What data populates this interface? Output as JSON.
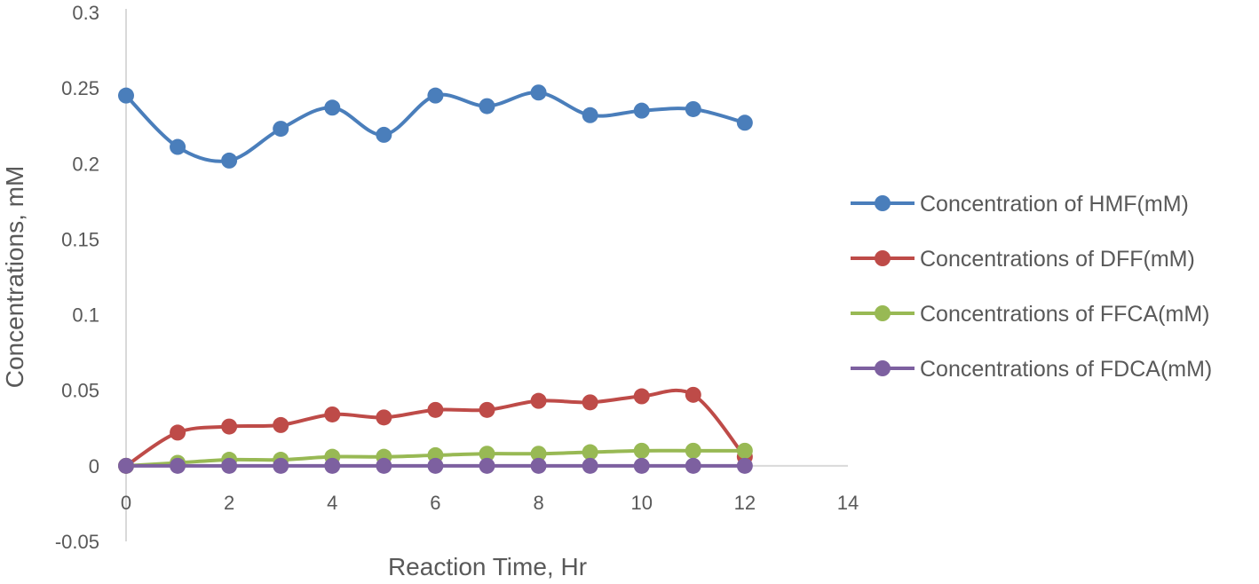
{
  "chart_data": {
    "type": "scatter",
    "title": "",
    "xlabel": "Reaction Time, Hr",
    "ylabel": "Concentrations, mM",
    "xlim": [
      0,
      14
    ],
    "ylim": [
      -0.05,
      0.3
    ],
    "x_ticks": [
      "0",
      "2",
      "4",
      "6",
      "8",
      "10",
      "12",
      "14"
    ],
    "y_ticks": [
      "0.3",
      "0.25",
      "0.2",
      "0.15",
      "0.1",
      "0.05",
      "0",
      "-0.05"
    ],
    "grid": false,
    "legend_position": "right",
    "smoothed_lines": true,
    "x": [
      0,
      1,
      2,
      3,
      4,
      5,
      6,
      7,
      8,
      9,
      10,
      11,
      12
    ],
    "series": [
      {
        "name": "Concentration of HMF(mM)",
        "color": "#4a7ebb",
        "values": [
          0.245,
          0.211,
          0.202,
          0.223,
          0.237,
          0.219,
          0.245,
          0.238,
          0.247,
          0.232,
          0.235,
          0.236,
          0.227
        ]
      },
      {
        "name": "Concentrations of DFF(mM)",
        "color": "#be4b48",
        "values": [
          0.0,
          0.022,
          0.026,
          0.027,
          0.034,
          0.032,
          0.037,
          0.037,
          0.043,
          0.042,
          0.046,
          0.047,
          0.006
        ]
      },
      {
        "name": "Concentrations of FFCA(mM)",
        "color": "#98b954",
        "values": [
          0.0,
          0.002,
          0.004,
          0.004,
          0.006,
          0.006,
          0.007,
          0.008,
          0.008,
          0.009,
          0.01,
          0.01,
          0.01
        ]
      },
      {
        "name": "Concentrations of FDCA(mM)",
        "color": "#7d60a0",
        "values": [
          0,
          0,
          0,
          0,
          0,
          0,
          0,
          0,
          0,
          0,
          0,
          0,
          0
        ]
      }
    ]
  }
}
